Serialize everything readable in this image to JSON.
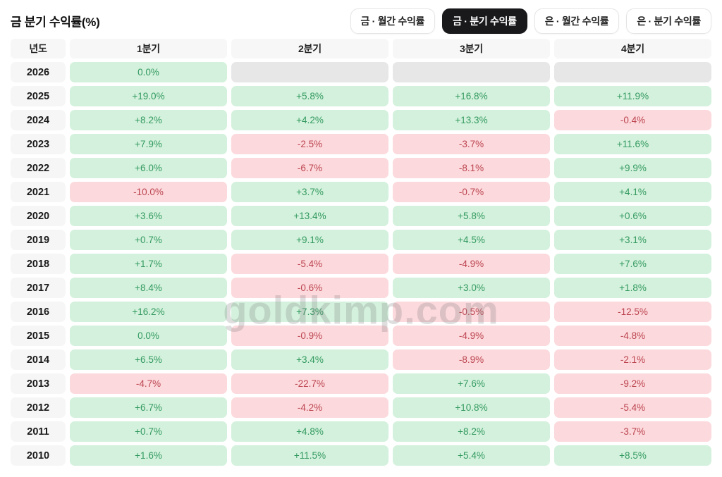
{
  "page": {
    "title": "금 분기 수익률(%)",
    "watermark": "goldkimp.com"
  },
  "tabs": [
    {
      "label": "금 · 월간 수익률",
      "active": false
    },
    {
      "label": "금 · 분기 수익률",
      "active": true
    },
    {
      "label": "은 · 월간 수익률",
      "active": false
    },
    {
      "label": "은 · 분기 수익률",
      "active": false
    }
  ],
  "table": {
    "headers": [
      "년도",
      "1분기",
      "2분기",
      "3분기",
      "4분기"
    ],
    "rows": [
      {
        "year": "2026",
        "values": [
          "0.0%",
          null,
          null,
          null
        ]
      },
      {
        "year": "2025",
        "values": [
          "+19.0%",
          "+5.8%",
          "+16.8%",
          "+11.9%"
        ]
      },
      {
        "year": "2024",
        "values": [
          "+8.2%",
          "+4.2%",
          "+13.3%",
          "-0.4%"
        ]
      },
      {
        "year": "2023",
        "values": [
          "+7.9%",
          "-2.5%",
          "-3.7%",
          "+11.6%"
        ]
      },
      {
        "year": "2022",
        "values": [
          "+6.0%",
          "-6.7%",
          "-8.1%",
          "+9.9%"
        ]
      },
      {
        "year": "2021",
        "values": [
          "-10.0%",
          "+3.7%",
          "-0.7%",
          "+4.1%"
        ]
      },
      {
        "year": "2020",
        "values": [
          "+3.6%",
          "+13.4%",
          "+5.8%",
          "+0.6%"
        ]
      },
      {
        "year": "2019",
        "values": [
          "+0.7%",
          "+9.1%",
          "+4.5%",
          "+3.1%"
        ]
      },
      {
        "year": "2018",
        "values": [
          "+1.7%",
          "-5.4%",
          "-4.9%",
          "+7.6%"
        ]
      },
      {
        "year": "2017",
        "values": [
          "+8.4%",
          "-0.6%",
          "+3.0%",
          "+1.8%"
        ]
      },
      {
        "year": "2016",
        "values": [
          "+16.2%",
          "+7.3%",
          "-0.5%",
          "-12.5%"
        ]
      },
      {
        "year": "2015",
        "values": [
          "0.0%",
          "-0.9%",
          "-4.9%",
          "-4.8%"
        ]
      },
      {
        "year": "2014",
        "values": [
          "+6.5%",
          "+3.4%",
          "-8.9%",
          "-2.1%"
        ]
      },
      {
        "year": "2013",
        "values": [
          "-4.7%",
          "-22.7%",
          "+7.6%",
          "-9.2%"
        ]
      },
      {
        "year": "2012",
        "values": [
          "+6.7%",
          "-4.2%",
          "+10.8%",
          "-5.4%"
        ]
      },
      {
        "year": "2011",
        "values": [
          "+0.7%",
          "+4.8%",
          "+8.2%",
          "-3.7%"
        ]
      },
      {
        "year": "2010",
        "values": [
          "+1.6%",
          "+11.5%",
          "+5.4%",
          "+8.5%"
        ]
      }
    ]
  },
  "colors": {
    "positive_bg": "#d3f1dc",
    "positive_text": "#349a60",
    "negative_bg": "#fcd9dc",
    "negative_text": "#bc4550",
    "empty_bg": "#e7e7e7",
    "active_tab_bg": "#19191c"
  },
  "chart_data": {
    "type": "table",
    "title": "금 분기 수익률(%)",
    "columns": [
      "년도",
      "1분기",
      "2분기",
      "3분기",
      "4분기"
    ],
    "units": "%",
    "rows": [
      [
        "2026",
        0.0,
        null,
        null,
        null
      ],
      [
        "2025",
        19.0,
        5.8,
        16.8,
        11.9
      ],
      [
        "2024",
        8.2,
        4.2,
        13.3,
        -0.4
      ],
      [
        "2023",
        7.9,
        -2.5,
        -3.7,
        11.6
      ],
      [
        "2022",
        6.0,
        -6.7,
        -8.1,
        9.9
      ],
      [
        "2021",
        -10.0,
        3.7,
        -0.7,
        4.1
      ],
      [
        "2020",
        3.6,
        13.4,
        5.8,
        0.6
      ],
      [
        "2019",
        0.7,
        9.1,
        4.5,
        3.1
      ],
      [
        "2018",
        1.7,
        -5.4,
        -4.9,
        7.6
      ],
      [
        "2017",
        8.4,
        -0.6,
        3.0,
        1.8
      ],
      [
        "2016",
        16.2,
        7.3,
        -0.5,
        -12.5
      ],
      [
        "2015",
        0.0,
        -0.9,
        -4.9,
        -4.8
      ],
      [
        "2014",
        6.5,
        3.4,
        -8.9,
        -2.1
      ],
      [
        "2013",
        -4.7,
        -22.7,
        7.6,
        -9.2
      ],
      [
        "2012",
        6.7,
        -4.2,
        10.8,
        -5.4
      ],
      [
        "2011",
        0.7,
        4.8,
        8.2,
        -3.7
      ],
      [
        "2010",
        1.6,
        11.5,
        5.4,
        8.5
      ]
    ],
    "color_coding": {
      "positive_or_zero": "green",
      "negative": "red",
      "missing": "gray"
    },
    "legend_position": "none",
    "grid": false
  }
}
